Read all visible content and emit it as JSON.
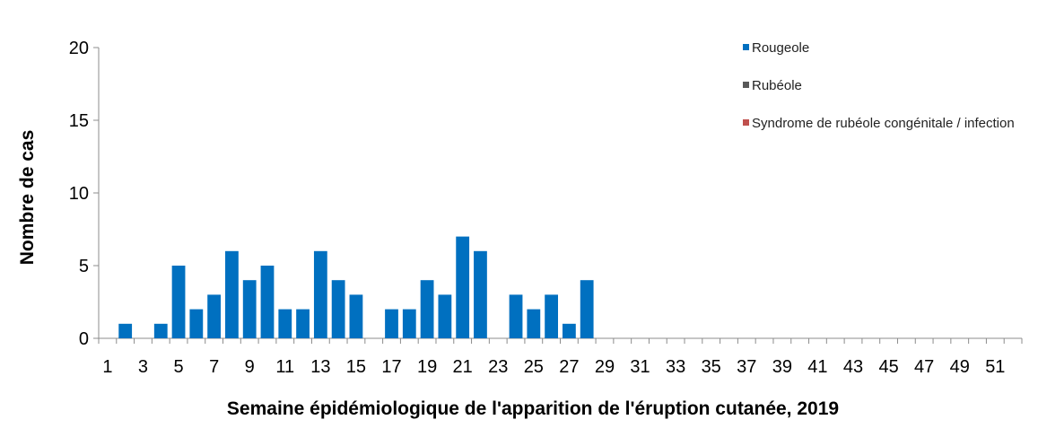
{
  "chart_data": {
    "type": "bar",
    "xlabel": "Semaine épidémiologique de l'apparition de l'éruption cutanée, 2019",
    "ylabel": "Nombre de cas",
    "ylim": [
      0,
      20
    ],
    "yticks": [
      "0",
      "5",
      "10",
      "15",
      "20"
    ],
    "categories": [
      "1",
      "2",
      "3",
      "4",
      "5",
      "6",
      "7",
      "8",
      "9",
      "10",
      "11",
      "12",
      "13",
      "14",
      "15",
      "16",
      "17",
      "18",
      "19",
      "20",
      "21",
      "22",
      "23",
      "24",
      "25",
      "26",
      "27",
      "28",
      "29",
      "30",
      "31",
      "32",
      "33",
      "34",
      "35",
      "36",
      "37",
      "38",
      "39",
      "40",
      "41",
      "42",
      "43",
      "44",
      "45",
      "46",
      "47",
      "48",
      "49",
      "50",
      "51",
      "52"
    ],
    "tick_labels": [
      "1",
      "3",
      "5",
      "7",
      "9",
      "11",
      "13",
      "15",
      "17",
      "19",
      "21",
      "23",
      "25",
      "27",
      "29",
      "31",
      "33",
      "35",
      "37",
      "39",
      "41",
      "43",
      "45",
      "47",
      "49",
      "51"
    ],
    "grid": false,
    "legend_position": "top-right",
    "series": [
      {
        "name": "Rougeole",
        "color": "#0070C0",
        "values": [
          0,
          1,
          0,
          1,
          5,
          2,
          3,
          6,
          4,
          5,
          2,
          2,
          6,
          4,
          3,
          0,
          2,
          2,
          4,
          3,
          7,
          6,
          0,
          3,
          2,
          3,
          1,
          4,
          0,
          0,
          0,
          0,
          0,
          0,
          0,
          0,
          0,
          0,
          0,
          0,
          0,
          0,
          0,
          0,
          0,
          0,
          0,
          0,
          0,
          0,
          0,
          0
        ]
      },
      {
        "name": "Rubéole",
        "color": "#595959",
        "values": [
          0,
          0,
          0,
          0,
          0,
          0,
          0,
          0,
          0,
          0,
          0,
          0,
          0,
          0,
          0,
          0,
          0,
          0,
          0,
          0,
          0,
          0,
          0,
          0,
          0,
          0,
          0,
          0,
          0,
          0,
          0,
          0,
          0,
          0,
          0,
          0,
          0,
          0,
          0,
          0,
          0,
          0,
          0,
          0,
          0,
          0,
          0,
          0,
          0,
          0,
          0,
          0
        ]
      },
      {
        "name": "Syndrome de rubéole congénitale / infection",
        "color": "#C0504D",
        "values": [
          0,
          0,
          0,
          0,
          0,
          0,
          0,
          0,
          0,
          0,
          0,
          0,
          0,
          0,
          0,
          0,
          0,
          0,
          0,
          0,
          0,
          0,
          0,
          0,
          0,
          0,
          0,
          0,
          0,
          0,
          0,
          0,
          0,
          0,
          0,
          0,
          0,
          0,
          0,
          0,
          0,
          0,
          0,
          0,
          0,
          0,
          0,
          0,
          0,
          0,
          0,
          0
        ]
      }
    ]
  }
}
